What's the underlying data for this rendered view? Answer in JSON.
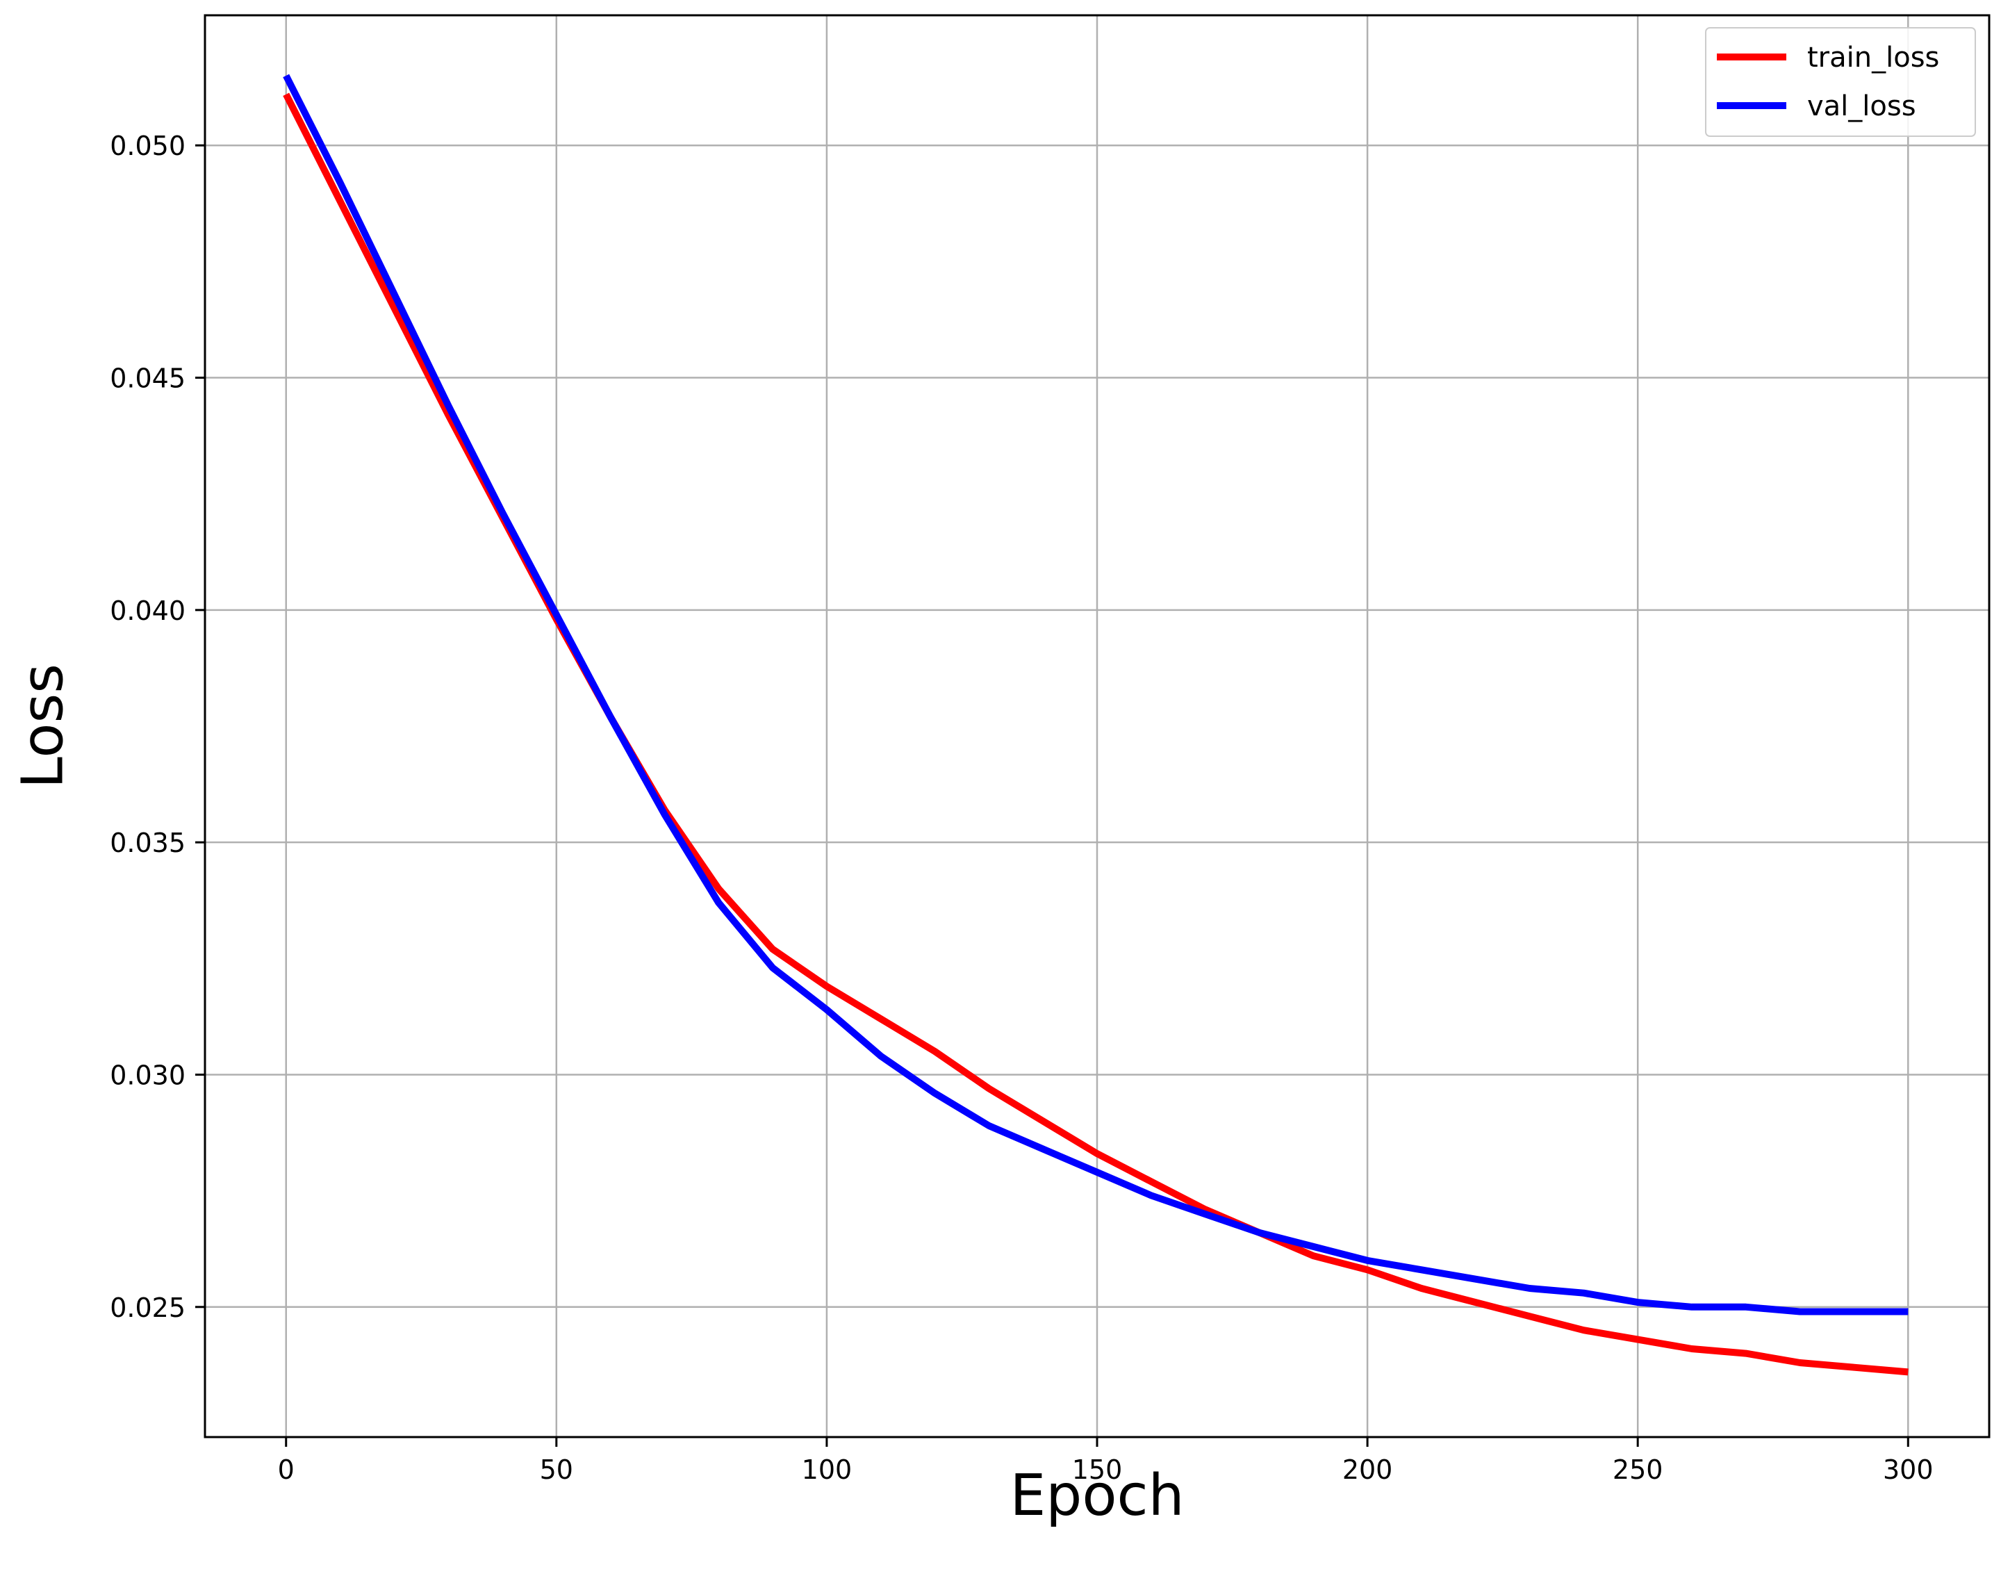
{
  "chart_data": {
    "type": "line",
    "title": "",
    "xlabel": "Epoch",
    "ylabel": "Loss",
    "xlim": [
      -15,
      315
    ],
    "ylim": [
      0.0222,
      0.0528
    ],
    "xticks": [
      0,
      50,
      100,
      150,
      200,
      250,
      300
    ],
    "xtick_labels": [
      "0",
      "50",
      "100",
      "150",
      "200",
      "250",
      "300"
    ],
    "yticks": [
      0.025,
      0.03,
      0.035,
      0.04,
      0.045,
      0.05
    ],
    "ytick_labels": [
      "0.025",
      "0.030",
      "0.035",
      "0.040",
      "0.045",
      "0.050"
    ],
    "grid": true,
    "legend_position": "top-right",
    "series": [
      {
        "name": "train_loss",
        "color": "#ff0000",
        "x": [
          0,
          10,
          20,
          30,
          40,
          50,
          60,
          70,
          80,
          90,
          100,
          110,
          120,
          130,
          140,
          150,
          160,
          170,
          180,
          190,
          200,
          210,
          220,
          230,
          240,
          250,
          260,
          270,
          280,
          290,
          300
        ],
        "y": [
          0.0511,
          0.0488,
          0.0465,
          0.0442,
          0.042,
          0.0398,
          0.0377,
          0.0357,
          0.034,
          0.0327,
          0.0319,
          0.0312,
          0.0305,
          0.0297,
          0.029,
          0.0283,
          0.0277,
          0.0271,
          0.0266,
          0.0261,
          0.0258,
          0.0254,
          0.0251,
          0.0248,
          0.0245,
          0.0243,
          0.0241,
          0.024,
          0.0238,
          0.0237,
          0.0236
        ]
      },
      {
        "name": "val_loss",
        "color": "#0000ff",
        "x": [
          0,
          10,
          20,
          30,
          40,
          50,
          60,
          70,
          80,
          90,
          100,
          110,
          120,
          130,
          140,
          150,
          160,
          170,
          180,
          190,
          200,
          210,
          220,
          230,
          240,
          250,
          260,
          270,
          280,
          290,
          300
        ],
        "y": [
          0.0515,
          0.0492,
          0.0468,
          0.0444,
          0.0421,
          0.0399,
          0.0377,
          0.0356,
          0.0337,
          0.0323,
          0.0314,
          0.0304,
          0.0296,
          0.0289,
          0.0284,
          0.0279,
          0.0274,
          0.027,
          0.0266,
          0.0263,
          0.026,
          0.0258,
          0.0256,
          0.0254,
          0.0253,
          0.0251,
          0.025,
          0.025,
          0.0249,
          0.0249,
          0.0249
        ]
      }
    ]
  }
}
